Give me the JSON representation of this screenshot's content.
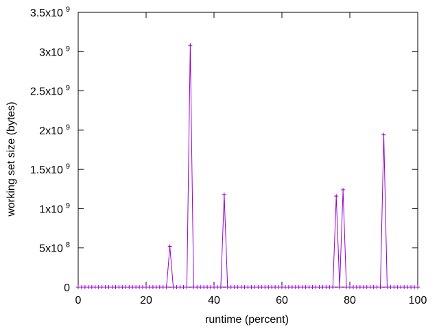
{
  "chart_data": {
    "type": "line",
    "xlabel": "runtime (percent)",
    "ylabel": "working set size (bytes)",
    "xlim": [
      0,
      100
    ],
    "ylim": [
      0,
      3500000000
    ],
    "grid": false,
    "line_color": "#9400d3",
    "x_ticks": [
      {
        "value": 0,
        "label": "0"
      },
      {
        "value": 20,
        "label": "20"
      },
      {
        "value": 40,
        "label": "40"
      },
      {
        "value": 60,
        "label": "60"
      },
      {
        "value": 80,
        "label": "80"
      },
      {
        "value": 100,
        "label": "100"
      }
    ],
    "y_ticks": [
      {
        "value": 0,
        "label": "0",
        "exp": ""
      },
      {
        "value": 500000000,
        "label": "5x10",
        "exp": "8"
      },
      {
        "value": 1000000000,
        "label": "1x10",
        "exp": "9"
      },
      {
        "value": 1500000000,
        "label": "1.5x10",
        "exp": "9"
      },
      {
        "value": 2000000000,
        "label": "2x10",
        "exp": "9"
      },
      {
        "value": 2500000000,
        "label": "2.5x10",
        "exp": "9"
      },
      {
        "value": 3000000000,
        "label": "3x10",
        "exp": "9"
      },
      {
        "value": 3500000000,
        "label": "3.5x10",
        "exp": "9"
      }
    ],
    "series": [
      {
        "x": [
          0,
          1,
          2,
          3,
          4,
          5,
          6,
          7,
          8,
          9,
          10,
          11,
          12,
          13,
          14,
          15,
          16,
          17,
          18,
          19,
          20,
          21,
          22,
          23,
          24,
          25,
          26,
          27,
          28,
          29,
          30,
          31,
          32,
          33,
          34,
          35,
          36,
          37,
          38,
          39,
          40,
          41,
          42,
          43,
          44,
          45,
          46,
          47,
          48,
          49,
          50,
          51,
          52,
          53,
          54,
          55,
          56,
          57,
          58,
          59,
          60,
          61,
          62,
          63,
          64,
          65,
          66,
          67,
          68,
          69,
          70,
          71,
          72,
          73,
          74,
          75,
          76,
          77,
          78,
          79,
          80,
          81,
          82,
          83,
          84,
          85,
          86,
          87,
          88,
          89,
          90,
          91,
          92,
          93,
          94,
          95,
          96,
          97,
          98,
          99,
          100
        ],
        "y": [
          0,
          0,
          0,
          0,
          0,
          0,
          0,
          0,
          0,
          0,
          0,
          0,
          0,
          0,
          0,
          0,
          0,
          0,
          0,
          0,
          0,
          0,
          0,
          0,
          0,
          0,
          0,
          520000000,
          0,
          0,
          0,
          0,
          0,
          3080000000,
          0,
          0,
          0,
          0,
          0,
          0,
          0,
          0,
          0,
          1180000000,
          0,
          0,
          0,
          0,
          0,
          0,
          0,
          0,
          0,
          0,
          0,
          0,
          0,
          0,
          0,
          0,
          0,
          0,
          0,
          0,
          0,
          0,
          0,
          0,
          0,
          0,
          0,
          0,
          0,
          0,
          0,
          0,
          1160000000,
          0,
          1240000000,
          0,
          0,
          0,
          0,
          0,
          0,
          0,
          0,
          0,
          0,
          0,
          1940000000,
          0,
          0,
          0,
          0,
          0,
          0,
          0,
          0,
          0,
          0
        ]
      }
    ]
  }
}
